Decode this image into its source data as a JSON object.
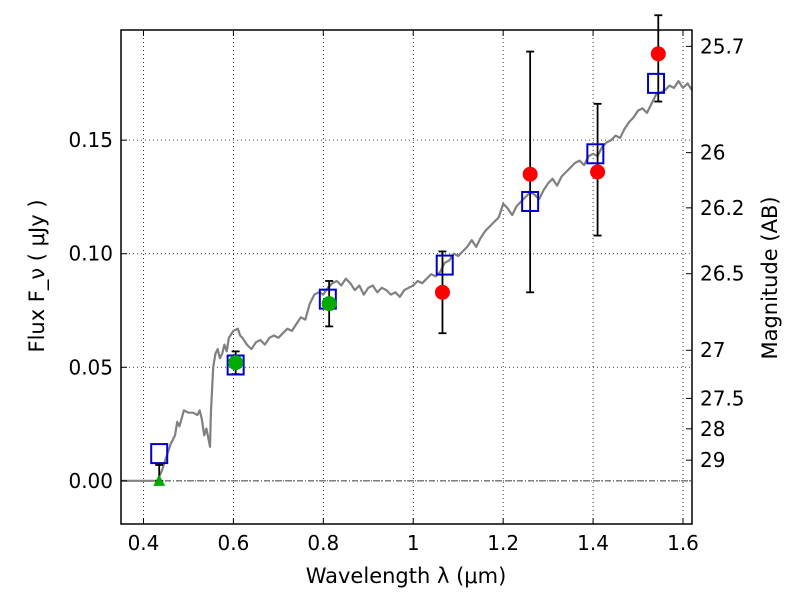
{
  "chart_data": {
    "type": "scatter",
    "xlabel": "Wavelength  λ (μm)",
    "ylabel": "Flux  F_ν  ( μJy )",
    "y2label": "Magnitude (AB)",
    "xlim": [
      0.35,
      1.62
    ],
    "ylim": [
      -0.019,
      0.1985
    ],
    "grid": true,
    "x_ticks": [
      {
        "value": 0.4,
        "label": "0.4"
      },
      {
        "value": 0.6,
        "label": "0.6"
      },
      {
        "value": 0.8,
        "label": "0.8"
      },
      {
        "value": 1.0,
        "label": "1"
      },
      {
        "value": 1.2,
        "label": "1.2"
      },
      {
        "value": 1.4,
        "label": "1.4"
      },
      {
        "value": 1.6,
        "label": "1.6"
      }
    ],
    "y_ticks": [
      {
        "value": 0.0,
        "label": "0.00"
      },
      {
        "value": 0.05,
        "label": "0.05"
      },
      {
        "value": 0.1,
        "label": "0.10"
      },
      {
        "value": 0.15,
        "label": "0.15"
      }
    ],
    "y2_ticks": [
      {
        "label": "25.7",
        "flux": 0.1913
      },
      {
        "label": "26",
        "flux": 0.1445
      },
      {
        "label": "26.2",
        "flux": 0.1202
      },
      {
        "label": "26.5",
        "flux": 0.0912
      },
      {
        "label": "27",
        "flux": 0.0575
      },
      {
        "label": "27.5",
        "flux": 0.0363
      },
      {
        "label": "28",
        "flux": 0.0229
      },
      {
        "label": "29",
        "flux": 0.0091
      }
    ],
    "series": [
      {
        "kind": "line",
        "color": "#808080",
        "points": [
          [
            0.35,
            0.0
          ],
          [
            0.43,
            0.0
          ],
          [
            0.44,
            0.004
          ],
          [
            0.45,
            0.01
          ],
          [
            0.46,
            0.016
          ],
          [
            0.47,
            0.02
          ],
          [
            0.475,
            0.026
          ],
          [
            0.48,
            0.024
          ],
          [
            0.49,
            0.031
          ],
          [
            0.5,
            0.03
          ],
          [
            0.51,
            0.03
          ],
          [
            0.52,
            0.029
          ],
          [
            0.525,
            0.031
          ],
          [
            0.53,
            0.027
          ],
          [
            0.535,
            0.02
          ],
          [
            0.54,
            0.023
          ],
          [
            0.545,
            0.018
          ],
          [
            0.548,
            0.015
          ],
          [
            0.55,
            0.03
          ],
          [
            0.555,
            0.05
          ],
          [
            0.56,
            0.056
          ],
          [
            0.565,
            0.058
          ],
          [
            0.57,
            0.054
          ],
          [
            0.575,
            0.056
          ],
          [
            0.58,
            0.06
          ],
          [
            0.585,
            0.057
          ],
          [
            0.59,
            0.063
          ],
          [
            0.6,
            0.066
          ],
          [
            0.61,
            0.067
          ],
          [
            0.615,
            0.064
          ],
          [
            0.62,
            0.063
          ],
          [
            0.63,
            0.06
          ],
          [
            0.64,
            0.058
          ],
          [
            0.65,
            0.061
          ],
          [
            0.66,
            0.062
          ],
          [
            0.67,
            0.06
          ],
          [
            0.68,
            0.063
          ],
          [
            0.69,
            0.064
          ],
          [
            0.7,
            0.063
          ],
          [
            0.71,
            0.065
          ],
          [
            0.72,
            0.067
          ],
          [
            0.73,
            0.066
          ],
          [
            0.74,
            0.069
          ],
          [
            0.75,
            0.072
          ],
          [
            0.76,
            0.071
          ],
          [
            0.77,
            0.078
          ],
          [
            0.78,
            0.082
          ],
          [
            0.79,
            0.083
          ],
          [
            0.8,
            0.082
          ],
          [
            0.81,
            0.085
          ],
          [
            0.82,
            0.087
          ],
          [
            0.83,
            0.088
          ],
          [
            0.84,
            0.086
          ],
          [
            0.85,
            0.089
          ],
          [
            0.86,
            0.087
          ],
          [
            0.87,
            0.084
          ],
          [
            0.88,
            0.086
          ],
          [
            0.89,
            0.082
          ],
          [
            0.9,
            0.085
          ],
          [
            0.91,
            0.086
          ],
          [
            0.92,
            0.083
          ],
          [
            0.93,
            0.085
          ],
          [
            0.94,
            0.084
          ],
          [
            0.95,
            0.082
          ],
          [
            0.96,
            0.083
          ],
          [
            0.97,
            0.081
          ],
          [
            0.98,
            0.084
          ],
          [
            0.99,
            0.085
          ],
          [
            1.0,
            0.086
          ],
          [
            1.01,
            0.088
          ],
          [
            1.02,
            0.087
          ],
          [
            1.03,
            0.089
          ],
          [
            1.04,
            0.091
          ],
          [
            1.05,
            0.09
          ],
          [
            1.06,
            0.092
          ],
          [
            1.07,
            0.096
          ],
          [
            1.08,
            0.097
          ],
          [
            1.09,
            0.1
          ],
          [
            1.1,
            0.099
          ],
          [
            1.11,
            0.101
          ],
          [
            1.12,
            0.103
          ],
          [
            1.13,
            0.106
          ],
          [
            1.14,
            0.103
          ],
          [
            1.15,
            0.107
          ],
          [
            1.16,
            0.11
          ],
          [
            1.17,
            0.112
          ],
          [
            1.18,
            0.114
          ],
          [
            1.19,
            0.116
          ],
          [
            1.2,
            0.122
          ],
          [
            1.21,
            0.12
          ],
          [
            1.22,
            0.117
          ],
          [
            1.23,
            0.121
          ],
          [
            1.24,
            0.123
          ],
          [
            1.25,
            0.125
          ],
          [
            1.26,
            0.127
          ],
          [
            1.27,
            0.126
          ],
          [
            1.28,
            0.124
          ],
          [
            1.29,
            0.128
          ],
          [
            1.3,
            0.131
          ],
          [
            1.31,
            0.133
          ],
          [
            1.32,
            0.13
          ],
          [
            1.33,
            0.134
          ],
          [
            1.34,
            0.136
          ],
          [
            1.35,
            0.138
          ],
          [
            1.36,
            0.14
          ],
          [
            1.37,
            0.141
          ],
          [
            1.38,
            0.139
          ],
          [
            1.39,
            0.143
          ],
          [
            1.4,
            0.144
          ],
          [
            1.41,
            0.143
          ],
          [
            1.42,
            0.147
          ],
          [
            1.43,
            0.149
          ],
          [
            1.44,
            0.15
          ],
          [
            1.45,
            0.152
          ],
          [
            1.46,
            0.151
          ],
          [
            1.47,
            0.155
          ],
          [
            1.48,
            0.158
          ],
          [
            1.49,
            0.16
          ],
          [
            1.5,
            0.163
          ],
          [
            1.51,
            0.164
          ],
          [
            1.52,
            0.162
          ],
          [
            1.53,
            0.166
          ],
          [
            1.54,
            0.17
          ],
          [
            1.55,
            0.171
          ],
          [
            1.56,
            0.172
          ],
          [
            1.57,
            0.174
          ],
          [
            1.58,
            0.173
          ],
          [
            1.59,
            0.176
          ],
          [
            1.6,
            0.173
          ],
          [
            1.61,
            0.175
          ],
          [
            1.62,
            0.172
          ]
        ]
      },
      {
        "kind": "markers",
        "marker": "square",
        "color": "#0000cc",
        "points": [
          [
            0.435,
            0.012
          ],
          [
            0.605,
            0.051
          ],
          [
            0.81,
            0.08
          ],
          [
            1.07,
            0.095
          ],
          [
            1.26,
            0.123
          ],
          [
            1.405,
            0.144
          ],
          [
            1.54,
            0.175
          ]
        ]
      },
      {
        "kind": "markers",
        "marker": "circle",
        "color": "#ff0000",
        "points": [
          [
            1.065,
            0.083
          ],
          [
            1.26,
            0.135
          ],
          [
            1.41,
            0.136
          ],
          [
            1.545,
            0.188
          ]
        ],
        "errors": [
          [
            1.065,
            0.065,
            0.101
          ],
          [
            1.26,
            0.083,
            0.189
          ],
          [
            1.41,
            0.108,
            0.166
          ],
          [
            1.545,
            0.167,
            0.205
          ]
        ]
      },
      {
        "kind": "markers",
        "marker": "circle",
        "color": "#00aa00",
        "points": [
          [
            0.605,
            0.052
          ],
          [
            0.813,
            0.078
          ]
        ],
        "errors": [
          [
            0.605,
            0.047,
            0.057
          ],
          [
            0.813,
            0.068,
            0.088
          ]
        ]
      },
      {
        "kind": "markers",
        "marker": "triangle",
        "color": "#00aa00",
        "points": [
          [
            0.435,
            0.0
          ]
        ],
        "errors": [
          [
            0.435,
            0.0,
            0.007
          ]
        ]
      }
    ]
  }
}
